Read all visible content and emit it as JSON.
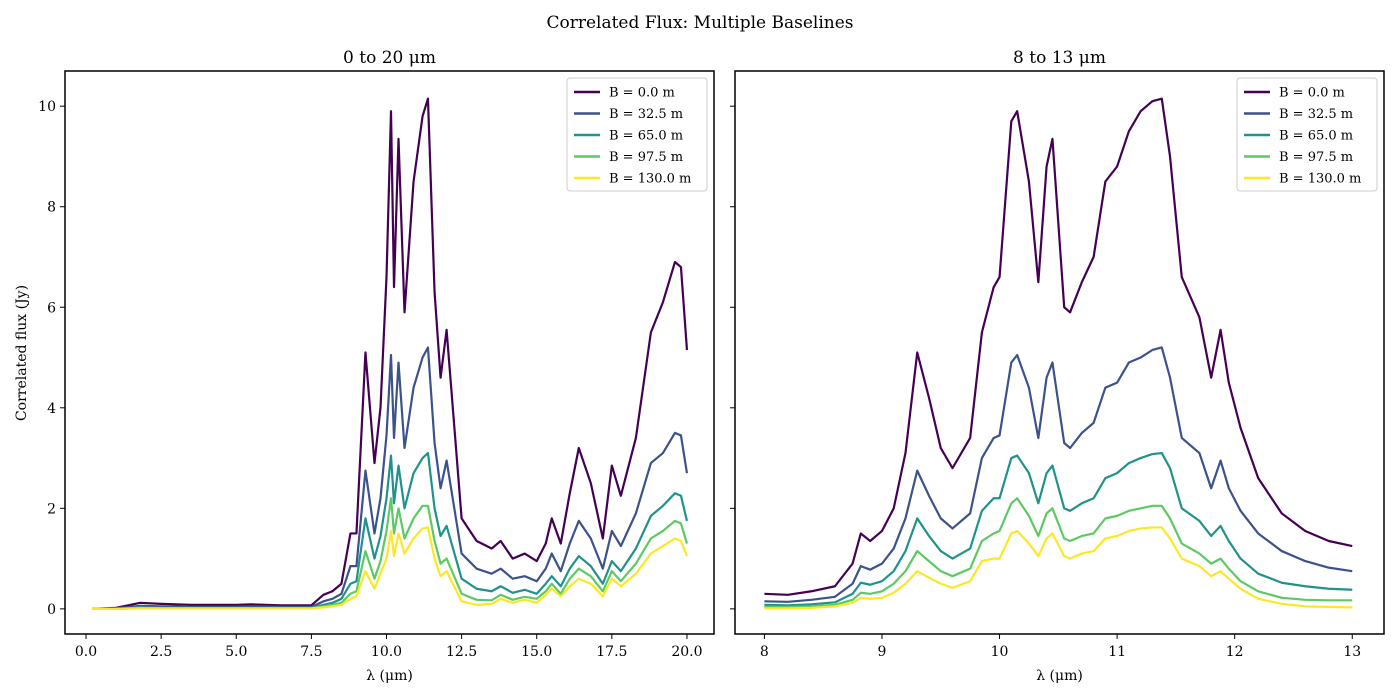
{
  "suptitle": "Correlated Flux: Multiple Baselines",
  "colors": [
    "#440154",
    "#3b528b",
    "#21918c",
    "#5ec962",
    "#fde725"
  ],
  "chart_data": [
    {
      "type": "line",
      "title": "0 to 20 μm",
      "xlabel": "λ (μm)",
      "ylabel": "Correlated flux (Jy)",
      "xlim": [
        -0.7,
        20.9
      ],
      "ylim": [
        -0.5,
        10.7
      ],
      "xticks": [
        0,
        2.5,
        5,
        7.5,
        10,
        12.5,
        15,
        17.5,
        20
      ],
      "xtick_labels": [
        "0.0",
        "2.5",
        "5.0",
        "7.5",
        "10.0",
        "12.5",
        "15.0",
        "17.5",
        "20.0"
      ],
      "yticks": [
        0,
        2,
        4,
        6,
        8,
        10
      ],
      "ytick_labels": [
        "0",
        "2",
        "4",
        "6",
        "8",
        "10"
      ],
      "legend": "top-right",
      "grid": false,
      "x": [
        0.2,
        1.0,
        1.8,
        2.5,
        3.5,
        5.0,
        5.5,
        6.5,
        7.5,
        7.9,
        8.2,
        8.5,
        8.8,
        9.0,
        9.3,
        9.6,
        9.8,
        10.0,
        10.15,
        10.25,
        10.4,
        10.6,
        10.9,
        11.2,
        11.38,
        11.6,
        11.8,
        12.0,
        12.5,
        13.0,
        13.5,
        13.8,
        14.2,
        14.6,
        15.0,
        15.3,
        15.5,
        15.8,
        16.1,
        16.4,
        16.8,
        17.2,
        17.5,
        17.8,
        18.3,
        18.8,
        19.2,
        19.6,
        19.8,
        20.0
      ],
      "series": [
        {
          "name": "B = 0.0 m",
          "values": [
            0.0,
            0.02,
            0.12,
            0.1,
            0.08,
            0.08,
            0.09,
            0.07,
            0.07,
            0.28,
            0.35,
            0.5,
            1.5,
            1.5,
            5.1,
            2.9,
            4.0,
            6.6,
            9.9,
            6.4,
            9.35,
            5.9,
            8.5,
            9.8,
            10.15,
            6.3,
            4.6,
            5.55,
            1.8,
            1.35,
            1.2,
            1.35,
            1.0,
            1.1,
            0.95,
            1.3,
            1.8,
            1.3,
            2.3,
            3.2,
            2.5,
            1.4,
            2.85,
            2.25,
            3.4,
            5.5,
            6.1,
            6.9,
            6.8,
            5.15
          ]
        },
        {
          "name": "B = 32.5 m",
          "values": [
            0.0,
            0.01,
            0.06,
            0.05,
            0.04,
            0.04,
            0.05,
            0.04,
            0.04,
            0.15,
            0.2,
            0.3,
            0.85,
            0.85,
            2.75,
            1.5,
            2.2,
            3.45,
            5.05,
            3.4,
            4.9,
            3.2,
            4.4,
            5.0,
            5.2,
            3.3,
            2.4,
            2.95,
            1.1,
            0.8,
            0.7,
            0.8,
            0.6,
            0.65,
            0.55,
            0.8,
            1.1,
            0.75,
            1.3,
            1.75,
            1.4,
            0.8,
            1.55,
            1.25,
            1.9,
            2.9,
            3.1,
            3.5,
            3.45,
            2.7
          ]
        },
        {
          "name": "B = 65.0 m",
          "values": [
            0.0,
            0.0,
            0.03,
            0.02,
            0.02,
            0.02,
            0.02,
            0.02,
            0.02,
            0.08,
            0.12,
            0.2,
            0.5,
            0.55,
            1.8,
            1.0,
            1.45,
            2.2,
            3.05,
            2.1,
            2.85,
            2.0,
            2.7,
            3.0,
            3.1,
            2.0,
            1.45,
            1.65,
            0.6,
            0.4,
            0.35,
            0.45,
            0.32,
            0.38,
            0.3,
            0.5,
            0.65,
            0.45,
            0.8,
            1.05,
            0.85,
            0.5,
            0.95,
            0.75,
            1.2,
            1.85,
            2.05,
            2.3,
            2.25,
            1.75
          ]
        },
        {
          "name": "B = 97.5 m",
          "values": [
            0.0,
            0.0,
            0.02,
            0.01,
            0.01,
            0.01,
            0.01,
            0.01,
            0.01,
            0.05,
            0.08,
            0.12,
            0.3,
            0.35,
            1.15,
            0.6,
            0.95,
            1.55,
            2.2,
            1.5,
            2.0,
            1.4,
            1.8,
            2.05,
            2.05,
            1.35,
            0.9,
            1.0,
            0.3,
            0.18,
            0.17,
            0.28,
            0.18,
            0.24,
            0.2,
            0.35,
            0.5,
            0.3,
            0.6,
            0.8,
            0.65,
            0.35,
            0.75,
            0.55,
            0.9,
            1.4,
            1.55,
            1.75,
            1.7,
            1.3
          ]
        },
        {
          "name": "B = 130.0 m",
          "values": [
            0.0,
            0.0,
            0.01,
            0.01,
            0.01,
            0.01,
            0.01,
            0.01,
            0.01,
            0.03,
            0.05,
            0.08,
            0.2,
            0.25,
            0.75,
            0.4,
            0.7,
            1.0,
            1.55,
            1.05,
            1.5,
            1.1,
            1.4,
            1.6,
            1.62,
            1.0,
            0.65,
            0.75,
            0.15,
            0.08,
            0.1,
            0.2,
            0.12,
            0.18,
            0.12,
            0.28,
            0.4,
            0.25,
            0.45,
            0.6,
            0.5,
            0.25,
            0.6,
            0.45,
            0.7,
            1.1,
            1.25,
            1.4,
            1.35,
            1.05
          ]
        }
      ]
    },
    {
      "type": "line",
      "title": "8 to 13 μm",
      "xlabel": "λ (μm)",
      "ylabel": "",
      "xlim": [
        7.75,
        13.27
      ],
      "ylim": [
        -0.5,
        10.7
      ],
      "xticks": [
        8,
        9,
        10,
        11,
        12,
        13
      ],
      "xtick_labels": [
        "8",
        "9",
        "10",
        "11",
        "12",
        "13"
      ],
      "yticks": [
        0,
        2,
        4,
        6,
        8,
        10
      ],
      "ytick_labels": [],
      "legend": "top-right",
      "grid": false,
      "x": [
        8.0,
        8.2,
        8.4,
        8.6,
        8.75,
        8.82,
        8.9,
        9.0,
        9.1,
        9.2,
        9.3,
        9.4,
        9.5,
        9.6,
        9.75,
        9.85,
        9.95,
        10.0,
        10.1,
        10.15,
        10.25,
        10.33,
        10.4,
        10.45,
        10.55,
        10.6,
        10.7,
        10.8,
        10.9,
        11.0,
        11.1,
        11.2,
        11.3,
        11.38,
        11.45,
        11.55,
        11.7,
        11.8,
        11.88,
        11.95,
        12.05,
        12.2,
        12.4,
        12.6,
        12.8,
        13.0
      ],
      "series": [
        {
          "name": "B = 0.0 m",
          "values": [
            0.3,
            0.28,
            0.35,
            0.45,
            0.9,
            1.5,
            1.35,
            1.55,
            2.0,
            3.1,
            5.1,
            4.2,
            3.2,
            2.8,
            3.4,
            5.5,
            6.4,
            6.6,
            9.7,
            9.9,
            8.5,
            6.5,
            8.8,
            9.35,
            6.0,
            5.9,
            6.5,
            7.0,
            8.5,
            8.8,
            9.5,
            9.9,
            10.1,
            10.15,
            9.0,
            6.6,
            5.8,
            4.6,
            5.55,
            4.5,
            3.6,
            2.6,
            1.9,
            1.55,
            1.35,
            1.25
          ]
        },
        {
          "name": "B = 32.5 m",
          "values": [
            0.15,
            0.14,
            0.18,
            0.24,
            0.5,
            0.85,
            0.78,
            0.9,
            1.2,
            1.8,
            2.75,
            2.25,
            1.8,
            1.6,
            1.9,
            3.0,
            3.4,
            3.45,
            4.9,
            5.05,
            4.4,
            3.4,
            4.6,
            4.9,
            3.3,
            3.2,
            3.5,
            3.7,
            4.4,
            4.5,
            4.9,
            5.0,
            5.15,
            5.2,
            4.6,
            3.4,
            3.1,
            2.4,
            2.95,
            2.4,
            1.95,
            1.5,
            1.15,
            0.95,
            0.82,
            0.75
          ]
        },
        {
          "name": "B = 65.0 m",
          "values": [
            0.08,
            0.07,
            0.09,
            0.13,
            0.3,
            0.52,
            0.48,
            0.55,
            0.75,
            1.15,
            1.8,
            1.45,
            1.15,
            1.0,
            1.2,
            1.95,
            2.2,
            2.2,
            3.0,
            3.05,
            2.7,
            2.1,
            2.7,
            2.85,
            2.0,
            1.95,
            2.1,
            2.2,
            2.6,
            2.7,
            2.9,
            3.0,
            3.08,
            3.1,
            2.8,
            2.0,
            1.75,
            1.45,
            1.65,
            1.35,
            1.0,
            0.7,
            0.52,
            0.45,
            0.4,
            0.38
          ]
        },
        {
          "name": "B = 97.5 m",
          "values": [
            0.04,
            0.04,
            0.05,
            0.08,
            0.18,
            0.32,
            0.3,
            0.35,
            0.5,
            0.75,
            1.15,
            0.95,
            0.75,
            0.65,
            0.8,
            1.35,
            1.5,
            1.55,
            2.1,
            2.2,
            1.85,
            1.45,
            1.9,
            2.0,
            1.4,
            1.35,
            1.45,
            1.5,
            1.8,
            1.85,
            1.95,
            2.0,
            2.05,
            2.05,
            1.8,
            1.3,
            1.1,
            0.9,
            1.0,
            0.8,
            0.55,
            0.35,
            0.22,
            0.18,
            0.17,
            0.17
          ]
        },
        {
          "name": "B = 130.0 m",
          "values": [
            0.01,
            0.01,
            0.02,
            0.05,
            0.12,
            0.22,
            0.2,
            0.22,
            0.32,
            0.5,
            0.75,
            0.62,
            0.5,
            0.42,
            0.55,
            0.95,
            1.0,
            1.0,
            1.5,
            1.55,
            1.3,
            1.05,
            1.4,
            1.5,
            1.05,
            1.0,
            1.1,
            1.15,
            1.4,
            1.45,
            1.55,
            1.6,
            1.62,
            1.62,
            1.4,
            1.0,
            0.85,
            0.65,
            0.75,
            0.6,
            0.4,
            0.2,
            0.1,
            0.05,
            0.04,
            0.03
          ]
        }
      ]
    }
  ]
}
